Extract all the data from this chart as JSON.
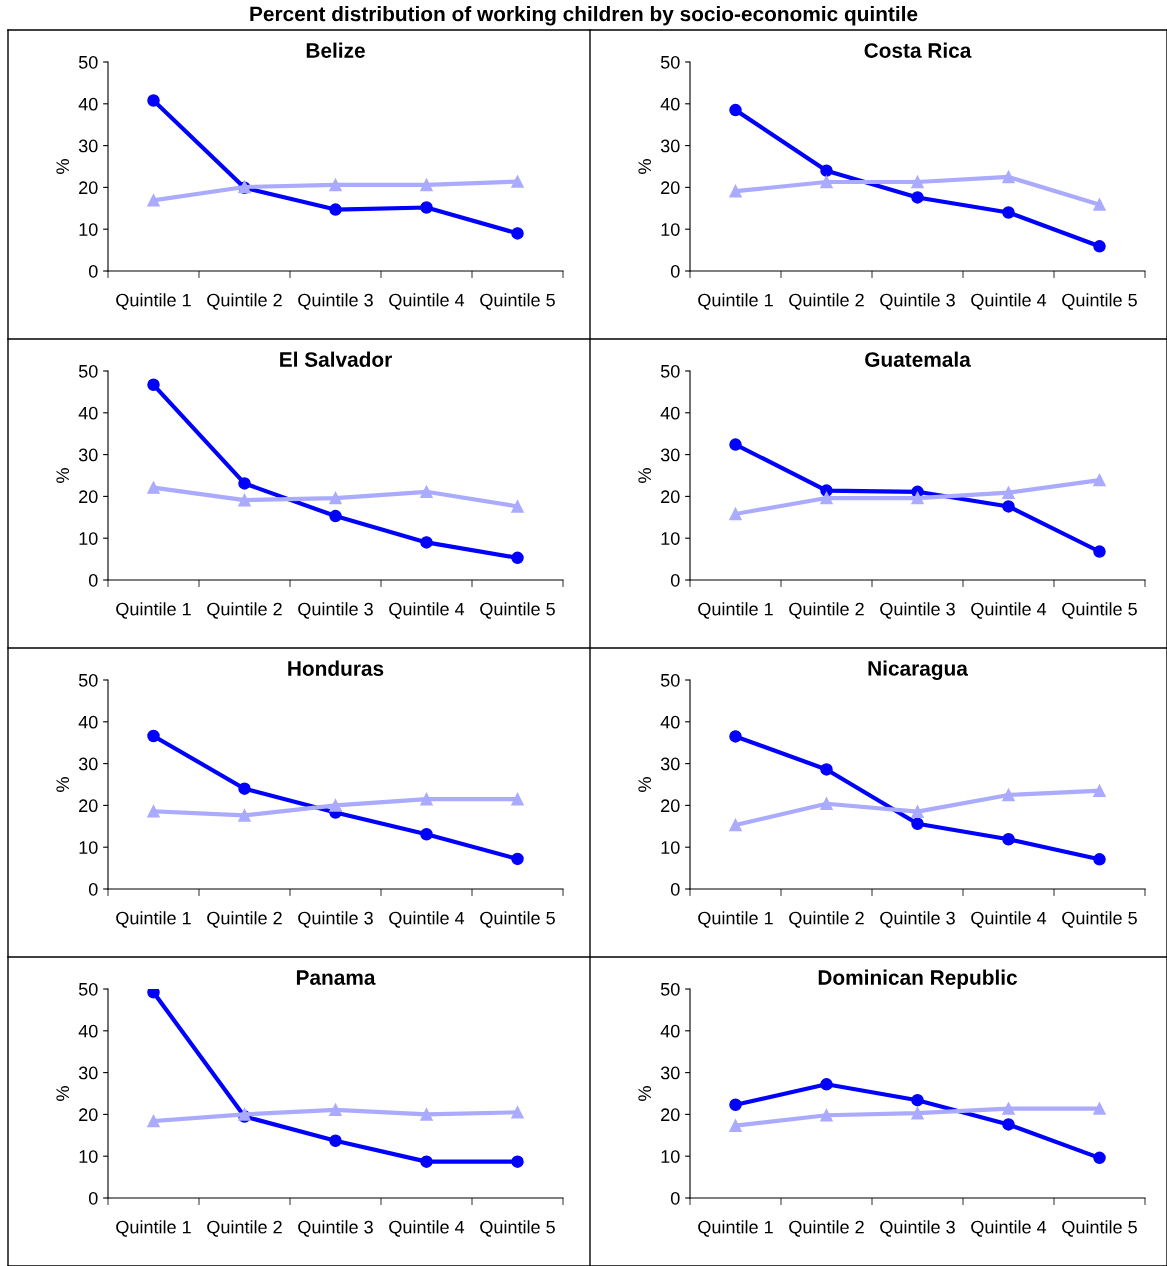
{
  "chart_data": [
    {
      "type": "line",
      "title": "Belize",
      "ylabel": "%",
      "categories": [
        "Quintile 1",
        "Quintile 2",
        "Quintile 3",
        "Quintile 4",
        "Quintile 5"
      ],
      "ylim": [
        0,
        50
      ],
      "yticks": [
        0,
        10,
        20,
        30,
        40,
        50
      ],
      "annotations": [
        "Percent distribution of working children by socio-economic quintile"
      ],
      "series": [
        {
          "color": "#0000ff",
          "marker": "circle",
          "values": [
            40.8,
            19.9,
            14.7,
            15.2,
            9.0
          ]
        },
        {
          "color": "#aaaaff",
          "marker": "triangle",
          "values": [
            16.9,
            20.1,
            20.6,
            20.6,
            21.4
          ]
        }
      ]
    },
    {
      "type": "line",
      "title": "Costa Rica",
      "ylabel": "%",
      "categories": [
        "Quintile 1",
        "Quintile 2",
        "Quintile 3",
        "Quintile 4",
        "Quintile 5"
      ],
      "ylim": [
        0,
        50
      ],
      "yticks": [
        0,
        10,
        20,
        30,
        40,
        50
      ],
      "series": [
        {
          "color": "#0000ff",
          "marker": "circle",
          "values": [
            38.5,
            24.0,
            17.6,
            14.0,
            5.9
          ]
        },
        {
          "color": "#aaaaff",
          "marker": "triangle",
          "values": [
            19.1,
            21.3,
            21.3,
            22.5,
            15.9
          ]
        }
      ]
    },
    {
      "type": "line",
      "title": "El Salvador",
      "ylabel": "%",
      "categories": [
        "Quintile 1",
        "Quintile 2",
        "Quintile 3",
        "Quintile 4",
        "Quintile 5"
      ],
      "ylim": [
        0,
        50
      ],
      "yticks": [
        0,
        10,
        20,
        30,
        40,
        50
      ],
      "series": [
        {
          "color": "#0000ff",
          "marker": "circle",
          "values": [
            46.7,
            23.1,
            15.3,
            9.0,
            5.3
          ]
        },
        {
          "color": "#aaaaff",
          "marker": "triangle",
          "values": [
            22.1,
            19.1,
            19.6,
            21.1,
            17.6
          ]
        }
      ]
    },
    {
      "type": "line",
      "title": "Guatemala",
      "ylabel": "%",
      "categories": [
        "Quintile 1",
        "Quintile 2",
        "Quintile 3",
        "Quintile 4",
        "Quintile 5"
      ],
      "ylim": [
        0,
        50
      ],
      "yticks": [
        0,
        10,
        20,
        30,
        40,
        50
      ],
      "series": [
        {
          "color": "#0000ff",
          "marker": "circle",
          "values": [
            32.4,
            21.4,
            21.1,
            17.6,
            6.8
          ]
        },
        {
          "color": "#aaaaff",
          "marker": "triangle",
          "values": [
            15.8,
            19.6,
            19.6,
            20.9,
            23.9
          ]
        }
      ]
    },
    {
      "type": "line",
      "title": "Honduras",
      "ylabel": "%",
      "categories": [
        "Quintile 1",
        "Quintile 2",
        "Quintile 3",
        "Quintile 4",
        "Quintile 5"
      ],
      "ylim": [
        0,
        50
      ],
      "yticks": [
        0,
        10,
        20,
        30,
        40,
        50
      ],
      "series": [
        {
          "color": "#0000ff",
          "marker": "circle",
          "values": [
            36.6,
            24.0,
            18.3,
            13.1,
            7.2
          ]
        },
        {
          "color": "#aaaaff",
          "marker": "triangle",
          "values": [
            18.6,
            17.6,
            20.0,
            21.5,
            21.5
          ]
        }
      ]
    },
    {
      "type": "line",
      "title": "Nicaragua",
      "ylabel": "%",
      "categories": [
        "Quintile 1",
        "Quintile 2",
        "Quintile 3",
        "Quintile 4",
        "Quintile 5"
      ],
      "ylim": [
        0,
        50
      ],
      "yticks": [
        0,
        10,
        20,
        30,
        40,
        50
      ],
      "series": [
        {
          "color": "#0000ff",
          "marker": "circle",
          "values": [
            36.5,
            28.6,
            15.6,
            11.9,
            7.1
          ]
        },
        {
          "color": "#aaaaff",
          "marker": "triangle",
          "values": [
            15.3,
            20.4,
            18.5,
            22.5,
            23.5
          ]
        }
      ]
    },
    {
      "type": "line",
      "title": "Panama",
      "ylabel": "%",
      "categories": [
        "Quintile 1",
        "Quintile 2",
        "Quintile 3",
        "Quintile 4",
        "Quintile 5"
      ],
      "ylim": [
        0,
        50
      ],
      "yticks": [
        0,
        10,
        20,
        30,
        40,
        50
      ],
      "series": [
        {
          "color": "#0000ff",
          "marker": "circle",
          "values": [
            49.2,
            19.5,
            13.7,
            8.7,
            8.7
          ]
        },
        {
          "color": "#aaaaff",
          "marker": "triangle",
          "values": [
            18.4,
            20.0,
            21.1,
            20.0,
            20.5
          ]
        }
      ]
    },
    {
      "type": "line",
      "title": "Dominican Republic",
      "ylabel": "%",
      "categories": [
        "Quintile 1",
        "Quintile 2",
        "Quintile 3",
        "Quintile 4",
        "Quintile 5"
      ],
      "ylim": [
        0,
        50
      ],
      "yticks": [
        0,
        10,
        20,
        30,
        40,
        50
      ],
      "series": [
        {
          "color": "#0000ff",
          "marker": "circle",
          "values": [
            22.3,
            27.2,
            23.4,
            17.6,
            9.6
          ]
        },
        {
          "color": "#aaaaff",
          "marker": "triangle",
          "values": [
            17.3,
            19.8,
            20.3,
            21.4,
            21.4
          ]
        }
      ]
    }
  ]
}
